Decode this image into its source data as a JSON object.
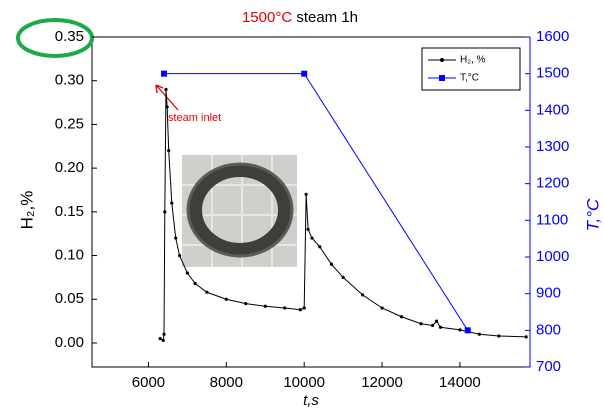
{
  "chart_data": {
    "type": "line",
    "title": [
      "1500°C",
      "steam 1h"
    ],
    "x_label": "t,s",
    "y_label": "H₂,%",
    "y2_label": "T,°C",
    "annotation": "steam inlet",
    "xlim": [
      4550,
      15800
    ],
    "xticks": [
      6000,
      8000,
      10000,
      12000,
      14000
    ],
    "ylim": [
      -0.0275,
      0.35
    ],
    "yticks": [
      {
        "value": 0,
        "label": "0.00"
      },
      {
        "value": 0.05,
        "label": "0.05"
      },
      {
        "value": 0.1,
        "label": "0.10"
      },
      {
        "value": 0.15,
        "label": "0.15"
      },
      {
        "value": 0.2,
        "label": "0.20"
      },
      {
        "value": 0.25,
        "label": "0.25"
      },
      {
        "value": 0.3,
        "label": "0.30"
      },
      {
        "value": 0.35,
        "label": "0.35"
      }
    ],
    "y2lim": [
      700,
      1600
    ],
    "y2ticks": [
      700,
      800,
      900,
      1000,
      1100,
      1200,
      1300,
      1400,
      1500,
      1600
    ],
    "legend": "upper right",
    "series": [
      {
        "name": "H₂, %",
        "color": "#000000",
        "x": [
          6300,
          6380,
          6400,
          6420,
          6450,
          6480,
          6520,
          6600,
          6700,
          6800,
          7000,
          7200,
          7500,
          8000,
          8500,
          9000,
          9500,
          9900,
          10000,
          10050,
          10100,
          10200,
          10400,
          10700,
          11000,
          11500,
          12000,
          12500,
          13000,
          13300,
          13400,
          13500,
          14000,
          14500,
          15000,
          15700
        ],
        "values": [
          0.005,
          0.003,
          0.01,
          0.15,
          0.29,
          0.27,
          0.22,
          0.16,
          0.12,
          0.1,
          0.08,
          0.068,
          0.058,
          0.05,
          0.045,
          0.042,
          0.04,
          0.038,
          0.04,
          0.17,
          0.13,
          0.12,
          0.11,
          0.09,
          0.075,
          0.055,
          0.04,
          0.03,
          0.022,
          0.02,
          0.025,
          0.018,
          0.015,
          0.01,
          0.008,
          0.007
        ]
      },
      {
        "name": "T,°C",
        "color": "#0000ff",
        "axis": "y2",
        "x": [
          6400,
          10000,
          14200
        ],
        "values": [
          1500,
          1500,
          800
        ]
      }
    ]
  }
}
